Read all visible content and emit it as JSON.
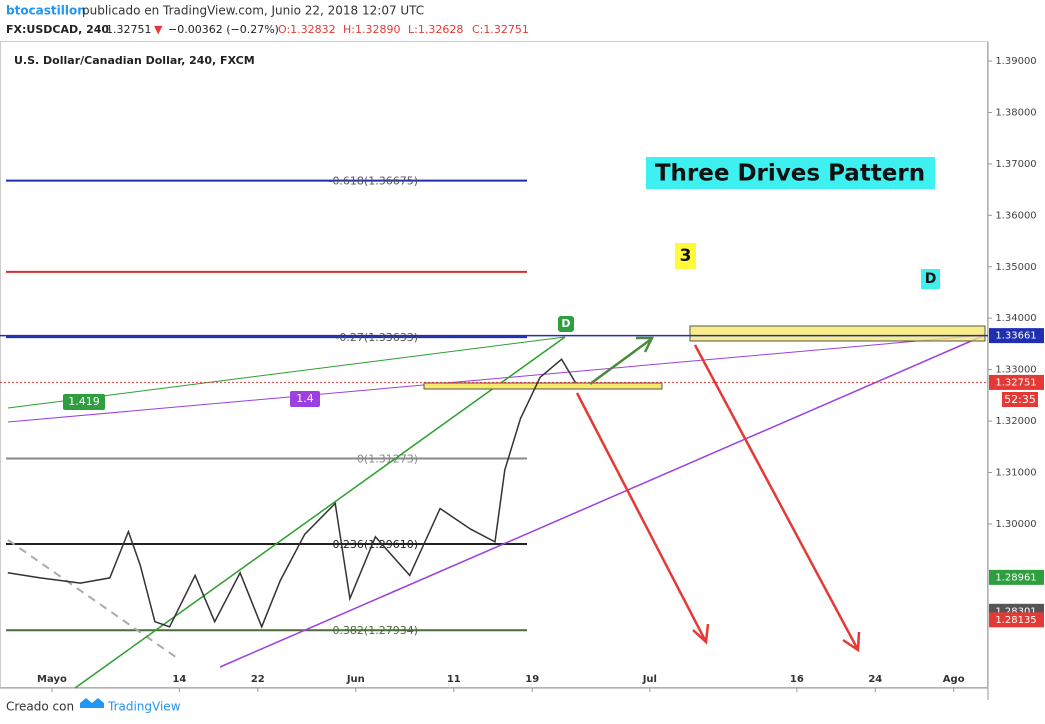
{
  "header": {
    "author": "btocastillon",
    "published": "publicado en TradingView.com, Junio 22, 2018 12:07 UTC",
    "symbol": "FX:USDCAD, 240",
    "last": "1.32751",
    "arrow": "▼",
    "change": "−0.00362 (−0.27%)",
    "open": "O:1.32832",
    "high": "H:1.32890",
    "low": "L:1.32628",
    "close": "C:1.32751"
  },
  "footer": {
    "made_with": "Creado con",
    "brand": "TradingView"
  },
  "chart_data": {
    "type": "line",
    "title": "U.S. Dollar/Canadian Dollar, 240, FXCM",
    "annotation": "Three Drives Pattern",
    "color": "#333333",
    "x": [
      -4.5,
      -1.2,
      2.9,
      5.9,
      7.8,
      9,
      10.5,
      12,
      14.6,
      16.6,
      19.2,
      21.4,
      23.3,
      25.8,
      28.9,
      30.4,
      33,
      36.5,
      39.6,
      42.7,
      45.2,
      46.2,
      47.8,
      49.8,
      52,
      53.4
    ],
    "values": [
      1.2905,
      1.2895,
      1.2885,
      1.2895,
      1.2985,
      1.292,
      1.281,
      1.28,
      1.29,
      1.281,
      1.2905,
      1.28,
      1.289,
      1.298,
      1.304,
      1.2855,
      1.2975,
      1.29,
      1.303,
      1.299,
      1.2965,
      1.3105,
      1.3205,
      1.3285,
      1.332,
      1.3275
    ],
    "xlim": [
      -5.3,
      95.5
    ],
    "ylim": [
      1.2681,
      1.3937
    ],
    "xticks": [
      {
        "value": 0,
        "label": "Mayo"
      },
      {
        "value": 13,
        "label": "14"
      },
      {
        "value": 21,
        "label": "22"
      },
      {
        "value": 31,
        "label": "Jun"
      },
      {
        "value": 41,
        "label": "11"
      },
      {
        "value": 49,
        "label": "19"
      },
      {
        "value": 61,
        "label": "Jul"
      },
      {
        "value": 76,
        "label": "16"
      },
      {
        "value": 84,
        "label": "24"
      },
      {
        "value": 92,
        "label": "Ago"
      }
    ],
    "yticks": [
      {
        "value": 1.3,
        "label": "1.30000"
      },
      {
        "value": 1.31,
        "label": "1.31000"
      },
      {
        "value": 1.32,
        "label": "1.32000"
      },
      {
        "value": 1.33,
        "label": "1.33000"
      },
      {
        "value": 1.34,
        "label": "1.34000"
      },
      {
        "value": 1.35,
        "label": "1.35000"
      },
      {
        "value": 1.36,
        "label": "1.36000"
      },
      {
        "value": 1.37,
        "label": "1.37000"
      },
      {
        "value": 1.38,
        "label": "1.38000"
      },
      {
        "value": 1.39,
        "label": "1.39000"
      }
    ],
    "levels": [
      {
        "value": 1.36675,
        "label": "-0.618(1.36675)",
        "color": "#1e2fb0"
      },
      {
        "value": 1.349,
        "color": "#d32f2f"
      },
      {
        "value": 1.33633,
        "label": "-0.27(1.33633)",
        "color": "#1e2fb0"
      },
      {
        "value": 1.31273,
        "label": "0(1.31273)",
        "color": "#888888"
      },
      {
        "value": 1.2961,
        "label": "0.236(1.29610)",
        "color": "#222222"
      },
      {
        "value": 1.27934,
        "label": "0.382(1.27934)",
        "color": "#4a6b3a"
      }
    ],
    "price_tags": [
      {
        "value": 1.33661,
        "label": "1.33661",
        "color": "#1e2fb0"
      },
      {
        "value": 1.32751,
        "label": "1.32751",
        "color": "#e53935"
      },
      {
        "value": 1.28961,
        "label": "1.28961",
        "color": "#2e9e3e"
      },
      {
        "value": 1.28301,
        "label": "1.28301",
        "color": "#555555"
      },
      {
        "value": 1.28135,
        "label": "1.28135",
        "color": "#e53935"
      }
    ],
    "countdown": "52:35",
    "labels": {
      "green_ratio": "1.419",
      "purple_ratio": "1.4",
      "d_green": "D",
      "drive3": "3",
      "d_cyan": "D"
    }
  }
}
